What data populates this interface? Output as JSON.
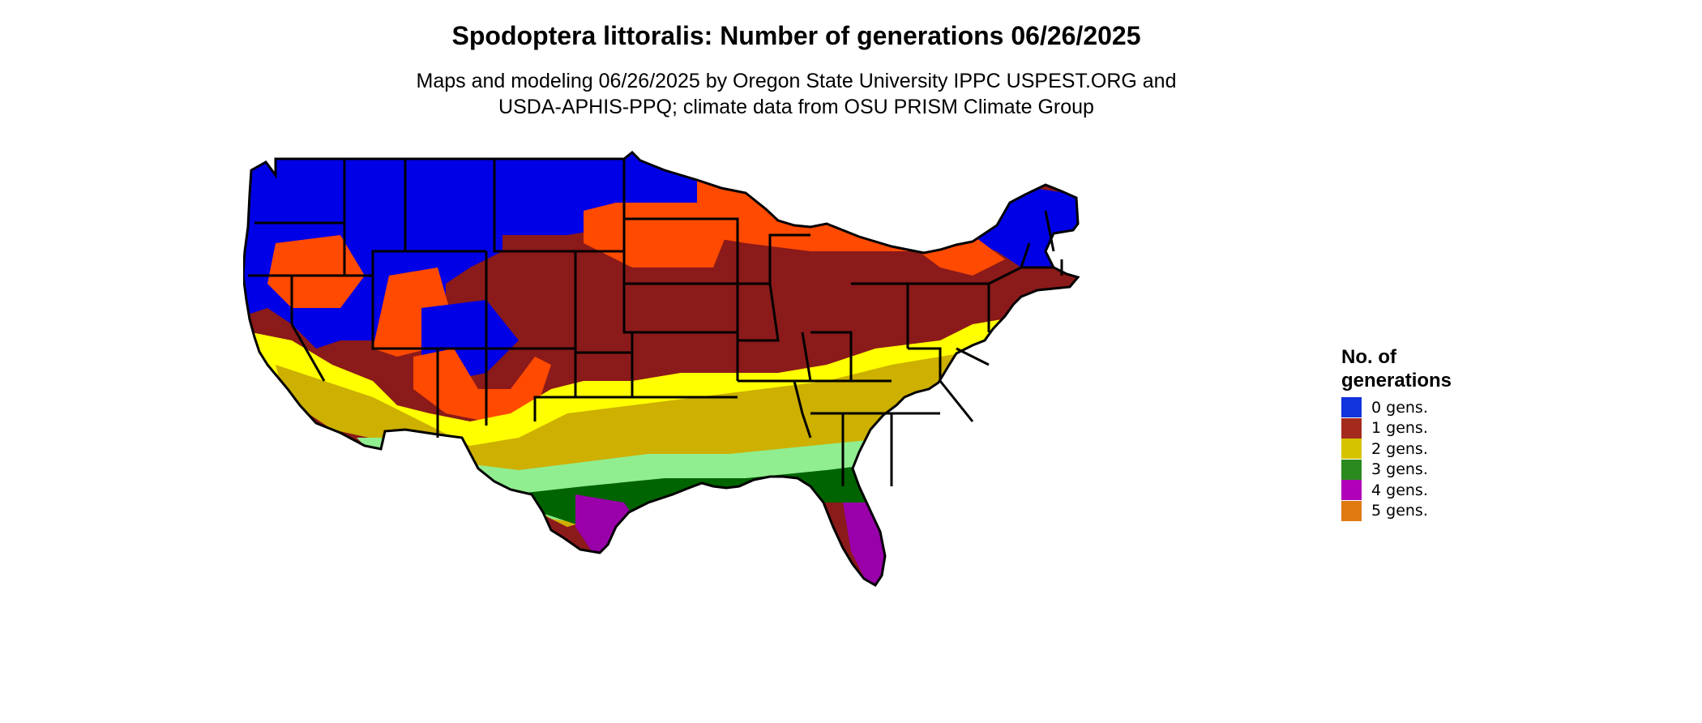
{
  "map": {
    "title": "Spodoptera littoralis: Number of generations 06/26/2025",
    "subtitle_line1": "Maps and modeling 06/26/2025 by Oregon State University IPPC USPEST.ORG and",
    "subtitle_line2": "USDA-APHIS-PPQ; climate data from OSU PRISM Climate Group"
  },
  "legend": {
    "title_line1": "No. of",
    "title_line2": "generations",
    "items": [
      {
        "label": "0 gens.",
        "color": "#1133dd"
      },
      {
        "label": "1 gens.",
        "color": "#a52a1e"
      },
      {
        "label": "2 gens.",
        "color": "#d6c300"
      },
      {
        "label": "3 gens.",
        "color": "#2a8a1e"
      },
      {
        "label": "4 gens.",
        "color": "#b000b8"
      },
      {
        "label": "5 gens.",
        "color": "#e07a10"
      }
    ]
  },
  "colors": {
    "zero": "#0000e6",
    "zero_partial": "#ff4a00",
    "one": "#8b1a1a",
    "one_partial": "#a0522d",
    "two_partial": "#ffff00",
    "two": "#cdb000",
    "three_partial": "#90ee90",
    "three": "#006400",
    "four_partial": "#ff33ff",
    "four": "#9900aa",
    "five": "#ff8000"
  }
}
